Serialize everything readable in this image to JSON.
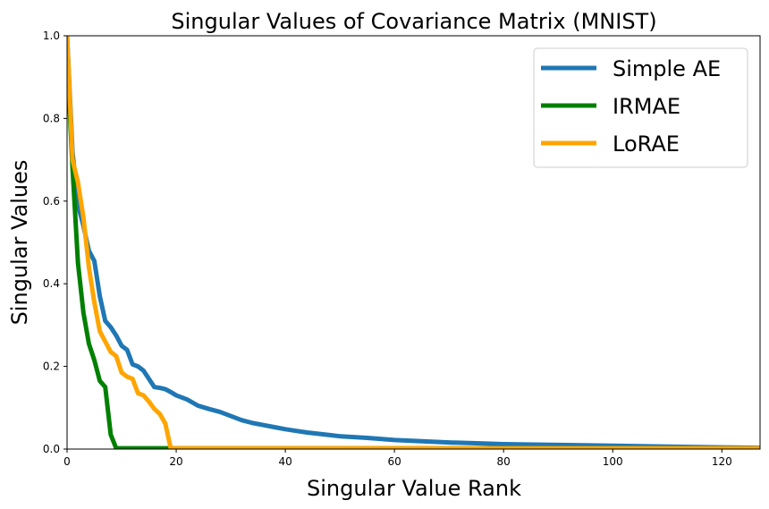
{
  "chart_data": {
    "type": "line",
    "title": "Singular Values of Covariance Matrix (MNIST)",
    "xlabel": "Singular Value Rank",
    "ylabel": "Singular Values",
    "xlim": [
      0,
      127
    ],
    "ylim": [
      0,
      1.0
    ],
    "xticks": [
      0,
      20,
      40,
      60,
      80,
      100,
      120
    ],
    "yticks": [
      0.0,
      0.2,
      0.4,
      0.6,
      0.8,
      1.0
    ],
    "xtick_labels": [
      "0",
      "20",
      "40",
      "60",
      "80",
      "100",
      "120"
    ],
    "ytick_labels": [
      "0.0",
      "0.2",
      "0.4",
      "0.6",
      "0.8",
      "1.0"
    ],
    "legend_position": "top-right",
    "grid": false,
    "series": [
      {
        "name": "Simple AE",
        "color": "#1f77b4",
        "x": [
          0,
          1,
          2,
          3,
          4,
          5,
          6,
          7,
          8,
          9,
          10,
          11,
          12,
          13,
          14,
          15,
          16,
          17,
          18,
          19,
          20,
          22,
          24,
          26,
          28,
          30,
          32,
          34,
          36,
          38,
          40,
          42,
          44,
          46,
          48,
          50,
          55,
          60,
          65,
          70,
          75,
          80,
          90,
          100,
          110,
          120,
          127
        ],
        "y": [
          1.0,
          0.72,
          0.59,
          0.54,
          0.48,
          0.455,
          0.37,
          0.31,
          0.295,
          0.275,
          0.25,
          0.24,
          0.205,
          0.2,
          0.19,
          0.17,
          0.15,
          0.148,
          0.145,
          0.138,
          0.13,
          0.12,
          0.105,
          0.097,
          0.09,
          0.08,
          0.07,
          0.063,
          0.058,
          0.053,
          0.048,
          0.044,
          0.04,
          0.037,
          0.034,
          0.031,
          0.027,
          0.022,
          0.019,
          0.016,
          0.014,
          0.012,
          0.01,
          0.008,
          0.006,
          0.004,
          0.003
        ]
      },
      {
        "name": "IRMAE",
        "color": "#008000",
        "x": [
          0,
          1,
          2,
          3,
          4,
          5,
          6,
          7,
          8,
          9,
          10,
          20,
          127
        ],
        "y": [
          0.95,
          0.68,
          0.45,
          0.33,
          0.255,
          0.215,
          0.165,
          0.15,
          0.035,
          0.002,
          0.002,
          0.002,
          0.002
        ]
      },
      {
        "name": "LoRAE",
        "color": "#ffa500",
        "x": [
          0,
          1,
          2,
          3,
          4,
          5,
          6,
          7,
          8,
          9,
          10,
          11,
          12,
          13,
          14,
          15,
          16,
          17,
          18,
          19,
          20,
          127
        ],
        "y": [
          1.0,
          0.7,
          0.645,
          0.56,
          0.44,
          0.355,
          0.285,
          0.26,
          0.235,
          0.225,
          0.185,
          0.175,
          0.17,
          0.135,
          0.13,
          0.115,
          0.097,
          0.085,
          0.062,
          0.002,
          0.002,
          0.002
        ]
      }
    ]
  }
}
